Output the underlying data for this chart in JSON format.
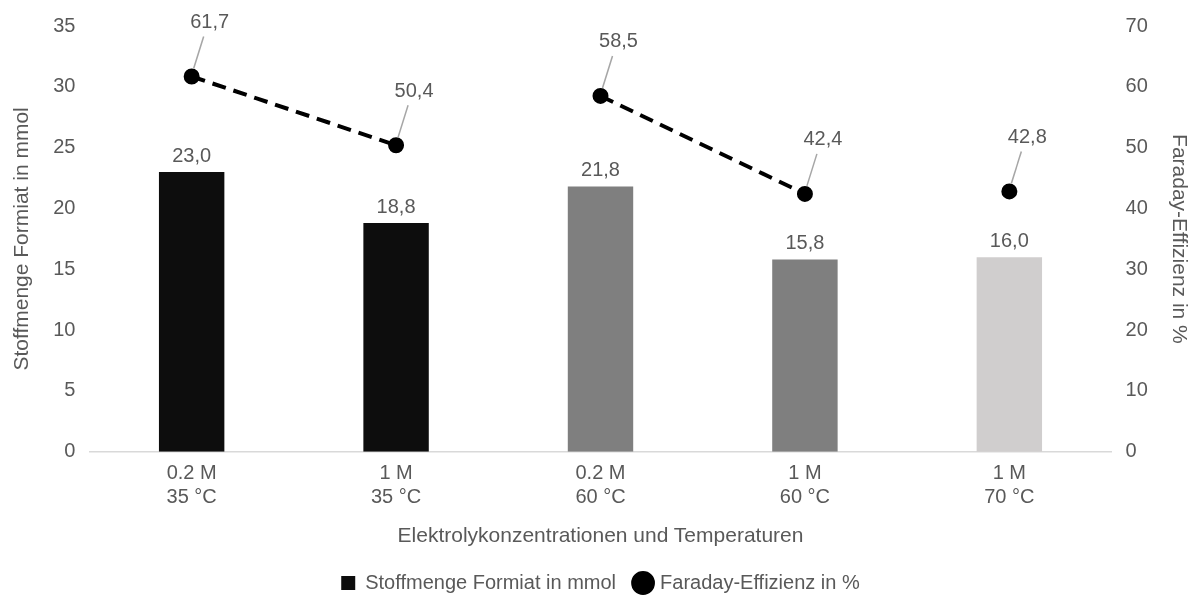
{
  "chart_data": {
    "type": "bar",
    "xlabel": "Elektrolykonzentrationen und Temperaturen",
    "ylabel": "Stoffmenge Formiat in mmol",
    "y2label": "Faraday-Effizienz in %",
    "categories": [
      "0.2 M\n35 °C",
      "1 M\n35 °C",
      "0.2 M\n60 °C",
      "1 M\n60 °C",
      "1 M\n70 °C"
    ],
    "series": [
      {
        "name": "Stoffmenge Formiat in mmol",
        "colors": [
          "#0d0d0d",
          "#0d0d0d",
          "#7f7f7f",
          "#7f7f7f",
          "#d0cece"
        ],
        "values": [
          23.0,
          18.8,
          21.8,
          15.8,
          16.0
        ],
        "value_labels": [
          "23,0",
          "18,8",
          "21,8",
          "15,8",
          "16,0"
        ]
      },
      {
        "name": "Faraday-Effizienz in %",
        "type": "line",
        "axis": "y2",
        "color": "#000000",
        "values": [
          61.7,
          50.4,
          null,
          null,
          null
        ],
        "value_labels": [
          "61,7",
          "50,4",
          null,
          null,
          null
        ]
      },
      {
        "type": "line",
        "axis": "y2",
        "color": "#000000",
        "values": [
          null,
          null,
          58.5,
          42.4,
          null
        ],
        "value_labels": [
          null,
          null,
          "58,5",
          "42,4",
          null
        ]
      },
      {
        "type": "line",
        "axis": "y2",
        "color": "#000000",
        "values": [
          null,
          null,
          null,
          null,
          42.8
        ],
        "value_labels": [
          null,
          null,
          null,
          null,
          "42,8"
        ]
      }
    ],
    "ylim": [
      0,
      35
    ],
    "yticks": [
      0,
      5,
      10,
      15,
      20,
      25,
      30,
      35
    ],
    "y2lim": [
      0,
      70
    ],
    "y2ticks": [
      0,
      10,
      20,
      30,
      40,
      50,
      60,
      70
    ],
    "grid": false,
    "legend": "bottom",
    "marker": "circle",
    "line_style": "dashed"
  }
}
